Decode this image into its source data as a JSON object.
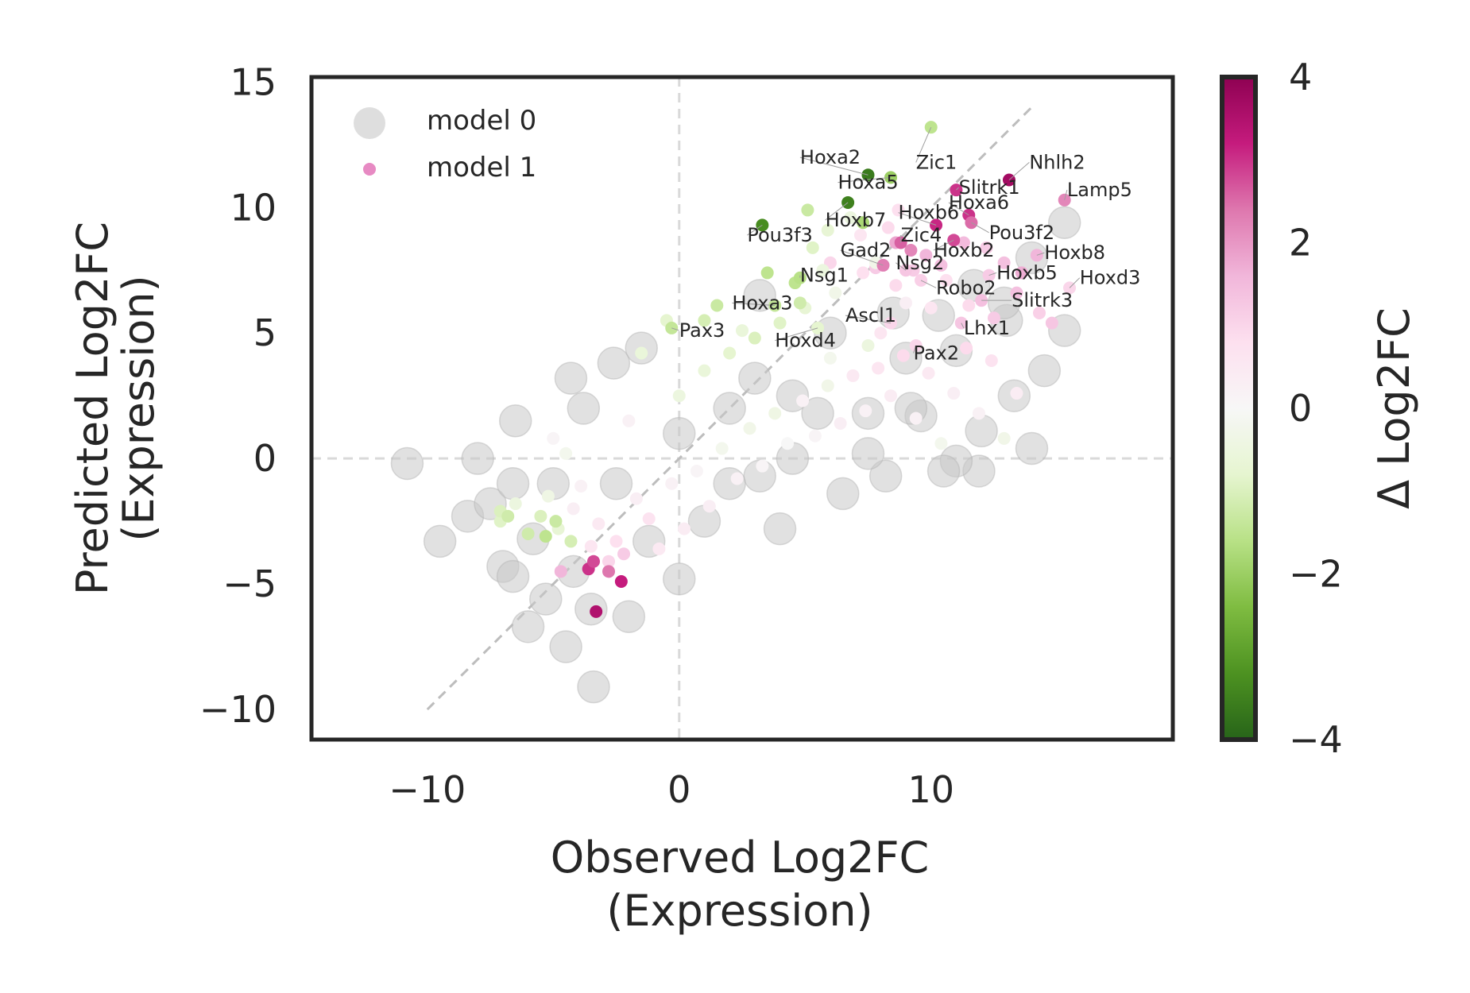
{
  "chart_data": {
    "type": "scatter",
    "xlabel": [
      "Observed Log2FC",
      "(Expression)"
    ],
    "ylabel": [
      "Predicted Log2FC",
      "(Expression)"
    ],
    "xlim": [
      -14.6,
      19.6
    ],
    "ylim": [
      -11.2,
      15.2
    ],
    "xticks": [
      -10,
      0,
      10
    ],
    "xtick_labels": [
      "−10",
      "0",
      "10"
    ],
    "yticks": [
      -10,
      -5,
      0,
      5,
      10,
      15
    ],
    "ytick_labels": [
      "−10",
      "−5",
      "0",
      "5",
      "10",
      "15"
    ],
    "grid": false,
    "reference_lines": {
      "horizontal_zero": true,
      "vertical_zero": true,
      "diagonal": [
        [
          -10,
          -10
        ],
        [
          14,
          14
        ]
      ]
    },
    "legend": {
      "position": "top-left",
      "entries": [
        "model 0",
        "model 1"
      ]
    },
    "colorbar": {
      "label": "Δ Log2FC",
      "range": [
        -4,
        4
      ],
      "ticks": [
        4,
        2,
        0,
        -2,
        -4
      ],
      "tick_labels": [
        "4",
        "2",
        "0",
        "−2",
        "−4"
      ],
      "colormap": "PiYG_r",
      "colors": {
        "low": "#276419",
        "mid": "#f7f7f7",
        "high": "#8e0152"
      }
    },
    "series": [
      {
        "name": "model 0",
        "color": "#c8c8c8",
        "points": [
          [
            -10.8,
            -0.2
          ],
          [
            -9.5,
            -3.3
          ],
          [
            -8.4,
            -2.3
          ],
          [
            -8,
            0
          ],
          [
            -7.5,
            -1.8
          ],
          [
            -7,
            -4.3
          ],
          [
            -6.6,
            -4.7
          ],
          [
            -6,
            -6.7
          ],
          [
            -5.3,
            -5.6
          ],
          [
            -4.5,
            -7.5
          ],
          [
            -3.4,
            -9.1
          ],
          [
            -2,
            -6.3
          ],
          [
            -1.2,
            -3.3
          ],
          [
            0,
            -4.8
          ],
          [
            1,
            -2.5
          ],
          [
            2,
            -1
          ],
          [
            3.2,
            -0.7
          ],
          [
            4.5,
            0
          ],
          [
            5.5,
            1.8
          ],
          [
            7.5,
            1.8
          ],
          [
            9,
            4
          ],
          [
            11,
            4.3
          ],
          [
            13,
            5.5
          ],
          [
            14.5,
            3.5
          ],
          [
            15.3,
            5.1
          ],
          [
            15.3,
            9.4
          ],
          [
            14,
            8
          ],
          [
            12.9,
            6.2
          ],
          [
            11.7,
            6.9
          ],
          [
            10.3,
            5.7
          ],
          [
            8.5,
            5.8
          ],
          [
            9.6,
            1.7
          ],
          [
            11.9,
            -0.5
          ],
          [
            14,
            0.4
          ],
          [
            13.3,
            2.5
          ],
          [
            11,
            -0.1
          ],
          [
            8.2,
            -0.7
          ],
          [
            6.5,
            -1.4
          ],
          [
            4,
            -2.8
          ],
          [
            -4.3,
            3.2
          ],
          [
            -2.6,
            3.8
          ],
          [
            -1.5,
            4.4
          ],
          [
            -3.8,
            2
          ],
          [
            -6.5,
            1.5
          ],
          [
            -5,
            -1
          ],
          [
            -2.5,
            -1
          ],
          [
            0,
            1
          ],
          [
            2,
            2
          ],
          [
            3,
            3.2
          ],
          [
            6,
            5
          ],
          [
            9.2,
            2
          ],
          [
            12,
            1.1
          ],
          [
            10.5,
            -0.5
          ],
          [
            7.5,
            0.2
          ],
          [
            4.5,
            2.5
          ],
          [
            3.2,
            6.5
          ],
          [
            -6.6,
            -1
          ],
          [
            -5.8,
            -3.2
          ],
          [
            -4.2,
            -4.5
          ],
          [
            -3.5,
            -6
          ]
        ]
      },
      {
        "name": "model 1",
        "color": "#e78ac3",
        "points": [
          [
            -7.1,
            -2.5,
            -0.9
          ],
          [
            -6.5,
            -1.8,
            -0.5
          ],
          [
            -6,
            -3,
            -1.2
          ],
          [
            -5.5,
            -2.3,
            -1
          ],
          [
            -5.2,
            -1.5,
            -0.4
          ],
          [
            -4.8,
            -2.8,
            -0.7
          ],
          [
            -4.5,
            0.2,
            -0.2
          ],
          [
            -4.2,
            -2,
            0.3
          ],
          [
            -3.9,
            -1.1,
            0.2
          ],
          [
            -3.5,
            -3.5,
            0.6
          ],
          [
            -3.2,
            -2.6,
            0.5
          ],
          [
            -2.8,
            -4.1,
            1
          ],
          [
            -2.5,
            -3.3,
            0.8
          ],
          [
            -2.2,
            -3.8,
            1.2
          ],
          [
            -1.7,
            -1.6,
            0.3
          ],
          [
            -1.2,
            -2.4,
            0.7
          ],
          [
            -0.8,
            -3.6,
            0.5
          ],
          [
            -0.3,
            -1,
            0.2
          ],
          [
            0.2,
            -2.8,
            0.4
          ],
          [
            0.7,
            -0.5,
            0.1
          ],
          [
            1.2,
            -1.9,
            0.3
          ],
          [
            1.7,
            0.4,
            -0.2
          ],
          [
            2.3,
            -0.8,
            0.2
          ],
          [
            2.8,
            1.2,
            -0.3
          ],
          [
            3.3,
            -0.3,
            0.1
          ],
          [
            3.8,
            1.8,
            -0.4
          ],
          [
            4.3,
            0.6,
            0
          ],
          [
            4.9,
            2.3,
            0.2
          ],
          [
            5.4,
            0.9,
            0.1
          ],
          [
            5.9,
            2.9,
            -0.3
          ],
          [
            6.4,
            1.4,
            0.3
          ],
          [
            6.9,
            3.3,
            0.5
          ],
          [
            7.4,
            1.9,
            0.2
          ],
          [
            7.9,
            3.6,
            0.6
          ],
          [
            8.4,
            2.5,
            0.4
          ],
          [
            8.9,
            4.1,
            0.9
          ],
          [
            9.4,
            1.6,
            0.2
          ],
          [
            9.9,
            3.4,
            0.5
          ],
          [
            10.4,
            0.6,
            -0.2
          ],
          [
            10.9,
            2.6,
            0.3
          ],
          [
            11.4,
            4.4,
            0.9
          ],
          [
            11.9,
            1.8,
            0.2
          ],
          [
            12.4,
            3.9,
            0.7
          ],
          [
            12.9,
            0.8,
            -0.3
          ],
          [
            13.4,
            2.6,
            0.4
          ],
          [
            -5,
            0.8,
            0.1
          ],
          [
            -2,
            1.5,
            0.2
          ],
          [
            0,
            2.5,
            -0.5
          ],
          [
            1,
            3.5,
            -0.6
          ],
          [
            2,
            4.2,
            -0.8
          ],
          [
            3,
            4.8,
            -1
          ],
          [
            4,
            5.4,
            -0.9
          ],
          [
            5,
            6,
            -0.7
          ],
          [
            1,
            5.5,
            -1.1
          ],
          [
            1.5,
            6.1,
            -1.3
          ],
          [
            2.5,
            5.1,
            -0.6
          ],
          [
            3.5,
            7.4,
            -1.5
          ],
          [
            4.6,
            7,
            -1.5
          ],
          [
            6.2,
            6.6,
            -0.3
          ],
          [
            7.3,
            7.4,
            0.8
          ],
          [
            8.6,
            6.9,
            0.9
          ],
          [
            9.3,
            7.5,
            1.2
          ],
          [
            10.6,
            7.1,
            0.8
          ],
          [
            11.5,
            6.1,
            0.9
          ],
          [
            12.5,
            5.6,
            1.2
          ],
          [
            13.4,
            6.6,
            1.4
          ],
          [
            14.3,
            5.8,
            1.1
          ],
          [
            14.8,
            5.4,
            1.3
          ],
          [
            -7.1,
            -2.1,
            -1
          ],
          [
            -6.8,
            -2.3,
            -1.2
          ],
          [
            -5.3,
            -3.1,
            -1.5
          ],
          [
            -4.9,
            -2.5,
            -1.3
          ],
          [
            -4.3,
            -3.3,
            -1.1
          ],
          [
            -1.5,
            4.2,
            -0.6
          ],
          [
            -0.5,
            5.5,
            -0.8
          ],
          [
            -3.6,
            -4.4,
            3
          ],
          [
            -3.4,
            -4.1,
            2.8
          ],
          [
            -2.8,
            -4.5,
            2.4
          ],
          [
            -2.3,
            -4.9,
            3.2
          ],
          [
            -3.3,
            -6.1,
            3.5
          ],
          [
            -4.7,
            -4.5,
            1.6
          ],
          [
            6,
            7.8,
            1
          ],
          [
            7.8,
            7.6,
            1.2
          ],
          [
            8.6,
            8.6,
            1.8
          ],
          [
            9.2,
            8.3,
            2.2
          ],
          [
            9.8,
            8.1,
            1.6
          ],
          [
            10.4,
            7.7,
            1.4
          ],
          [
            11.3,
            8.6,
            1.5
          ],
          [
            12.2,
            8.4,
            1.2
          ],
          [
            12.9,
            7.8,
            1.4
          ],
          [
            13.6,
            7.4,
            1.7
          ],
          [
            8.7,
            9.9,
            0.8
          ],
          [
            8.3,
            9.2,
            0.9
          ],
          [
            7.2,
            8.9,
            0.6
          ],
          [
            6.8,
            9.6,
            -0.5
          ],
          [
            5.9,
            9.1,
            -0.7
          ],
          [
            5.3,
            8.4,
            -0.9
          ],
          [
            5.7,
            7.5,
            -0.5
          ],
          [
            4.8,
            6.2,
            -1.2
          ],
          [
            5.1,
            9.9,
            -1.3
          ],
          [
            7.3,
            9.4,
            -1.8
          ],
          [
            7.8,
            7.8,
            -0.3
          ],
          [
            9,
            6.2,
            0.3
          ],
          [
            10,
            6,
            0.6
          ],
          [
            7.5,
            4.5,
            -0.5
          ],
          [
            8,
            5,
            0.6
          ],
          [
            6,
            4,
            -0.2
          ]
        ]
      }
    ],
    "highlighted_genes": [
      {
        "gene": "Hoxa2",
        "x": 7.5,
        "y": 11.3,
        "delta": -3.6,
        "label_x": 4.8,
        "label_y": 12
      },
      {
        "gene": "Zic1",
        "x": 10,
        "y": 13.2,
        "delta": -1.5,
        "label_x": 9.4,
        "label_y": 11.8
      },
      {
        "gene": "Nhlh2",
        "x": 13.1,
        "y": 11.1,
        "delta": 3.7,
        "label_x": 13.9,
        "label_y": 11.8
      },
      {
        "gene": "Lamp5",
        "x": 15.3,
        "y": 10.3,
        "delta": 2.2,
        "label_x": 15.4,
        "label_y": 10.7
      },
      {
        "gene": "Hoxa5",
        "x": 8.4,
        "y": 11.2,
        "delta": -2,
        "label_x": 6.3,
        "label_y": 11
      },
      {
        "gene": "Slitrk1",
        "x": 11,
        "y": 10.7,
        "delta": 3,
        "label_x": 11.1,
        "label_y": 10.8
      },
      {
        "gene": "Hoxa6",
        "x": 11.5,
        "y": 9.7,
        "delta": 3,
        "label_x": 10.7,
        "label_y": 10.2
      },
      {
        "gene": "Hoxb6",
        "x": 10.2,
        "y": 9.3,
        "delta": 3.1,
        "label_x": 8.7,
        "label_y": 9.8
      },
      {
        "gene": "Hoxb7",
        "x": 6.7,
        "y": 10.2,
        "delta": -3.5,
        "label_x": 5.8,
        "label_y": 9.5
      },
      {
        "gene": "Pou3f3",
        "x": 3.3,
        "y": 9.3,
        "delta": -3.3,
        "label_x": 2.7,
        "label_y": 8.9
      },
      {
        "gene": "Zic4",
        "x": 8.8,
        "y": 8.6,
        "delta": 2.6,
        "label_x": 8.8,
        "label_y": 8.9
      },
      {
        "gene": "Pou3f2",
        "x": 11.6,
        "y": 9.4,
        "delta": 2.5,
        "label_x": 12.3,
        "label_y": 9
      },
      {
        "gene": "Gad2",
        "x": 8.1,
        "y": 7.7,
        "delta": 2.3,
        "label_x": 6.4,
        "label_y": 8.3
      },
      {
        "gene": "Hoxb2",
        "x": 10.9,
        "y": 8.7,
        "delta": 2.8,
        "label_x": 10.1,
        "label_y": 8.3
      },
      {
        "gene": "Hoxb8",
        "x": 14.2,
        "y": 8.1,
        "delta": 1.6,
        "label_x": 14.5,
        "label_y": 8.2
      },
      {
        "gene": "Nsg2",
        "x": 9,
        "y": 7.5,
        "delta": 1.3,
        "label_x": 8.6,
        "label_y": 7.8
      },
      {
        "gene": "Nsg1",
        "x": 4.8,
        "y": 7.2,
        "delta": -1.6,
        "label_x": 4.8,
        "label_y": 7.3
      },
      {
        "gene": "Hoxb5",
        "x": 12.3,
        "y": 7.3,
        "delta": 1.2,
        "label_x": 12.6,
        "label_y": 7.4
      },
      {
        "gene": "Hoxd3",
        "x": 15.5,
        "y": 6.8,
        "delta": 1,
        "label_x": 15.9,
        "label_y": 7.2
      },
      {
        "gene": "Robo2",
        "x": 9.6,
        "y": 7.1,
        "delta": 1.1,
        "label_x": 10.2,
        "label_y": 6.8
      },
      {
        "gene": "Hoxa3",
        "x": 3.8,
        "y": 6.1,
        "delta": -1.4,
        "label_x": 2.1,
        "label_y": 6.2
      },
      {
        "gene": "Slitrk3",
        "x": 12,
        "y": 6.3,
        "delta": 1.4,
        "label_x": 13.2,
        "label_y": 6.3
      },
      {
        "gene": "Ascl1",
        "x": 8.4,
        "y": 5.4,
        "delta": 1,
        "label_x": 6.6,
        "label_y": 5.7
      },
      {
        "gene": "Pax3",
        "x": -0.3,
        "y": 5.2,
        "delta": -1.4,
        "label_x": 0,
        "label_y": 5.1
      },
      {
        "gene": "Lhx1",
        "x": 11.2,
        "y": 5.4,
        "delta": 1.3,
        "label_x": 11.3,
        "label_y": 5.2
      },
      {
        "gene": "Hoxd4",
        "x": 5.5,
        "y": 5.2,
        "delta": -0.8,
        "label_x": 3.8,
        "label_y": 4.7
      },
      {
        "gene": "Pax2",
        "x": 9.4,
        "y": 4.5,
        "delta": 1,
        "label_x": 9.3,
        "label_y": 4.2
      }
    ]
  }
}
